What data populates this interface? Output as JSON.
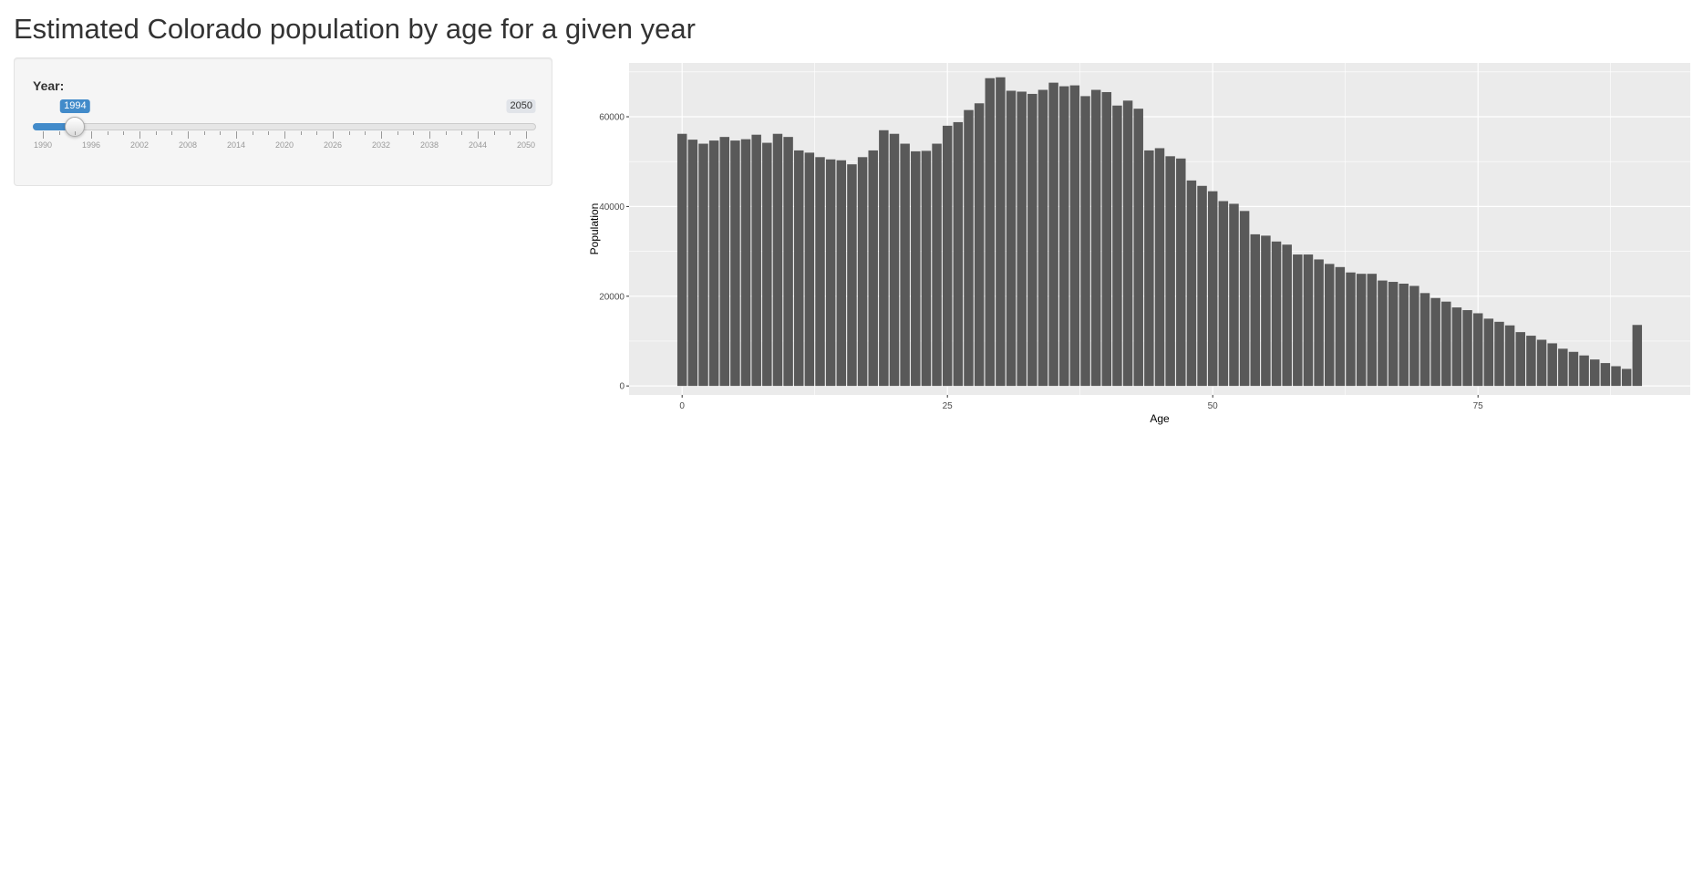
{
  "page": {
    "title": "Estimated Colorado population by age for a given year"
  },
  "slider": {
    "label": "Year:",
    "min": 1990,
    "max": 2050,
    "value": 1994,
    "value_label": "1994",
    "max_label": "2050",
    "ticks": [
      "1990",
      "1996",
      "2002",
      "2008",
      "2014",
      "2020",
      "2026",
      "2032",
      "2038",
      "2044",
      "2050"
    ],
    "accent_color": "#428bca"
  },
  "chart_data": {
    "type": "bar",
    "xlabel": "Age",
    "ylabel": "Population",
    "xlim": [
      -5,
      95
    ],
    "ylim": [
      -2000,
      72000
    ],
    "x_ticks": [
      0,
      25,
      50,
      75
    ],
    "y_ticks": [
      0,
      20000,
      40000,
      60000
    ],
    "grid": true,
    "panel_color": "#ebebeb",
    "bar_color": "#595959",
    "categories": [
      0,
      1,
      2,
      3,
      4,
      5,
      6,
      7,
      8,
      9,
      10,
      11,
      12,
      13,
      14,
      15,
      16,
      17,
      18,
      19,
      20,
      21,
      22,
      23,
      24,
      25,
      26,
      27,
      28,
      29,
      30,
      31,
      32,
      33,
      34,
      35,
      36,
      37,
      38,
      39,
      40,
      41,
      42,
      43,
      44,
      45,
      46,
      47,
      48,
      49,
      50,
      51,
      52,
      53,
      54,
      55,
      56,
      57,
      58,
      59,
      60,
      61,
      62,
      63,
      64,
      65,
      66,
      67,
      68,
      69,
      70,
      71,
      72,
      73,
      74,
      75,
      76,
      77,
      78,
      79,
      80,
      81,
      82,
      83,
      84,
      85,
      86,
      87,
      88,
      89,
      90
    ],
    "values": [
      56200,
      54900,
      54000,
      54700,
      55500,
      54700,
      55000,
      56000,
      54200,
      56200,
      55500,
      52500,
      52000,
      51000,
      50500,
      50300,
      49400,
      51000,
      52500,
      57000,
      56200,
      54000,
      52300,
      52400,
      54000,
      58000,
      58800,
      61500,
      63000,
      68600,
      68800,
      65800,
      65600,
      65100,
      66000,
      67600,
      66800,
      67000,
      64600,
      66000,
      65500,
      62500,
      63600,
      61800,
      52500,
      53000,
      51200,
      50700,
      45800,
      44600,
      43400,
      41200,
      40600,
      39000,
      33800,
      33500,
      32200,
      31500,
      29300,
      29300,
      28200,
      27200,
      26500,
      25300,
      25000,
      25000,
      23500,
      23200,
      22800,
      22300,
      20700,
      19600,
      18800,
      17500,
      16900,
      16200,
      15000,
      14300,
      13500,
      12000,
      11200,
      10300,
      9500,
      8300,
      7600,
      6800,
      5900,
      5100,
      4400,
      3800,
      13600
    ]
  }
}
